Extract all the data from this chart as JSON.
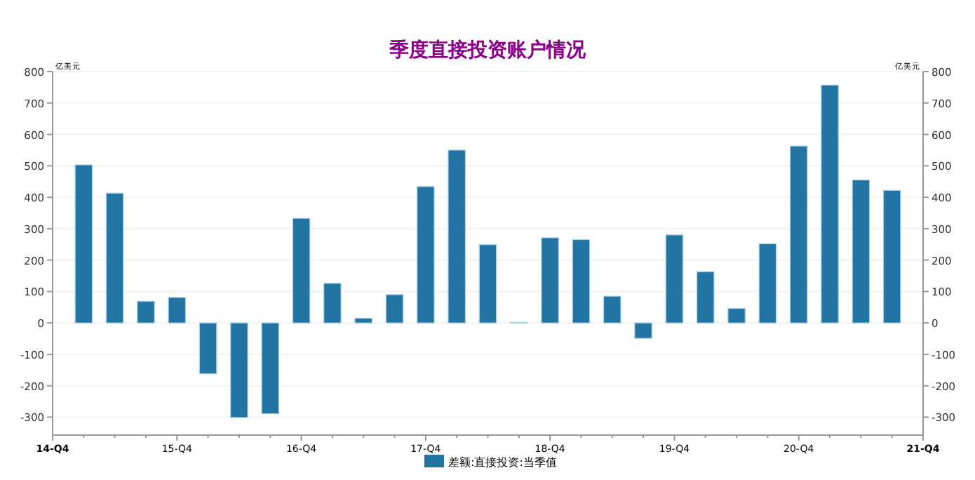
{
  "chart_data": {
    "type": "bar",
    "title": "季度直接投资账户情况",
    "ylabel": "亿美元",
    "y2label": "亿美元",
    "categories": [
      "14-Q4",
      null,
      null,
      null,
      "15-Q4",
      null,
      null,
      null,
      "16-Q4",
      null,
      null,
      null,
      "17-Q4",
      null,
      null,
      null,
      "18-Q4",
      null,
      null,
      null,
      "19-Q4",
      null,
      null,
      null,
      "20-Q4",
      null,
      null,
      null,
      "21-Q4"
    ],
    "series": [
      {
        "name": "差额:直接投资:当季值",
        "color": "#2275a3",
        "values": [
          null,
          503,
          413,
          69,
          81,
          -162,
          -301,
          -289,
          333,
          126,
          15,
          90,
          434,
          550,
          249,
          2,
          271,
          265,
          85,
          -49,
          280,
          163,
          46,
          252,
          563,
          757,
          455,
          422,
          null
        ]
      }
    ],
    "ylim": [
      -357,
      800
    ],
    "yticks": [
      -300,
      -200,
      -100,
      0,
      100,
      200,
      300,
      400,
      500,
      600,
      700,
      800
    ],
    "y2lim": [
      -357,
      800
    ],
    "y2ticks": [
      -300,
      -200,
      -100,
      0,
      100,
      200,
      300,
      400,
      500,
      600,
      700,
      800
    ],
    "grid": "y",
    "legend": "bottom"
  }
}
